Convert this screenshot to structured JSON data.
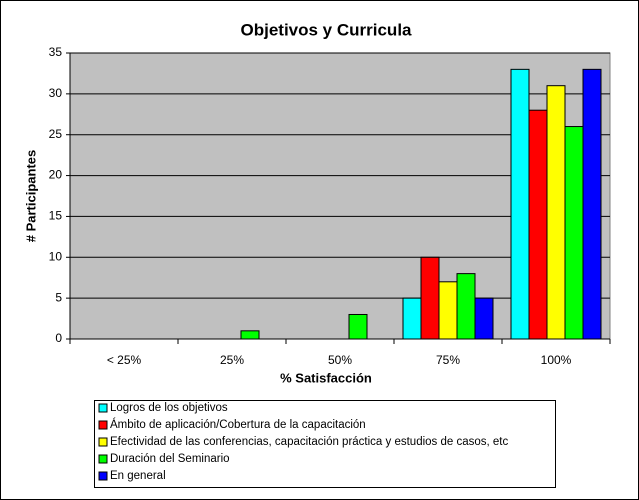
{
  "chart_data": {
    "type": "bar",
    "title": "Objetivos y Curricula",
    "x_label": "% Satisfacción",
    "y_label": "# Participantes",
    "categories": [
      "< 25%",
      "25%",
      "50%",
      "75%",
      "100%"
    ],
    "series": [
      {
        "name": "Logros de los objetivos",
        "color": "#00ffff",
        "values": [
          0,
          0,
          0,
          5,
          33
        ]
      },
      {
        "name": "Ámbito de aplicación/Cobertura de la capacitación",
        "color": "#ff0000",
        "values": [
          0,
          0,
          0,
          10,
          28
        ]
      },
      {
        "name": "Efectividad de las conferencias, capacitación práctica y estudios de casos, etc",
        "color": "#ffff00",
        "values": [
          0,
          0,
          0,
          7,
          31
        ]
      },
      {
        "name": "Duración del Seminario",
        "color": "#00ff00",
        "values": [
          0,
          1,
          3,
          8,
          26
        ]
      },
      {
        "name": "En general",
        "color": "#0000ff",
        "values": [
          0,
          0,
          0,
          5,
          33
        ]
      }
    ],
    "ylim": [
      0,
      35
    ],
    "yticks": [
      0,
      5,
      10,
      15,
      20,
      25,
      30,
      35
    ],
    "grid": true,
    "plot_color": "#c0c0c0"
  }
}
